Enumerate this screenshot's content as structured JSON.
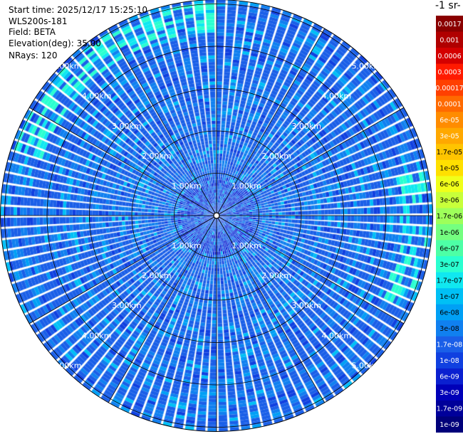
{
  "header": {
    "start_time": "Start time: 2025/12/17 15:25:10",
    "instrument": "WLS200s-181",
    "field": "Field: BETA",
    "elevation": "Elevation(deg): 35.00",
    "nrays": "NRays: 120"
  },
  "colorbar": {
    "title_fragment": "-1 sr-",
    "labels": [
      "0.0017",
      "0.001",
      "0.0006",
      "0.0003",
      "0.00017",
      "0.0001",
      "6e-05",
      "3e-05",
      "1.7e-05",
      "1e-05",
      "6e-06",
      "3e-06",
      "1.7e-06",
      "1e-06",
      "6e-07",
      "3e-07",
      "1.7e-07",
      "1e-07",
      "6e-08",
      "3e-08",
      "1.7e-08",
      "1e-08",
      "6e-09",
      "3e-09",
      "1.7e-09",
      "1e-09"
    ],
    "colors": [
      "#8a0000",
      "#b00000",
      "#d40000",
      "#ff1a00",
      "#ff4000",
      "#ff6a00",
      "#ff8c00",
      "#ffa800",
      "#ffc400",
      "#ffe000",
      "#f0ff1a",
      "#c8ff3a",
      "#9eff5a",
      "#74ff80",
      "#4dffa6",
      "#2affd0",
      "#10e8f0",
      "#00c0f5",
      "#00a0f5",
      "#1080f0",
      "#1a5fe8",
      "#1040e0",
      "#0a20d0",
      "#0000b8",
      "#00009a",
      "#00007a"
    ]
  },
  "chart_data": {
    "type": "heatmap",
    "projection": "polar PPI",
    "field": "BETA",
    "elevation_deg": 35.0,
    "n_rays": 120,
    "range_rings_km": [
      1,
      2,
      3,
      4,
      5
    ],
    "ring_labels": [
      "1.00km",
      "2.00km",
      "3.00km",
      "4.00km",
      "5.00km"
    ],
    "max_range_km": 5.1,
    "color_scale": "log",
    "value_range": [
      1e-09,
      0.0017
    ],
    "dominant_values": "mostly 1e-08 to 1e-07, patches up to ~1.7e-06 near 5 km"
  }
}
